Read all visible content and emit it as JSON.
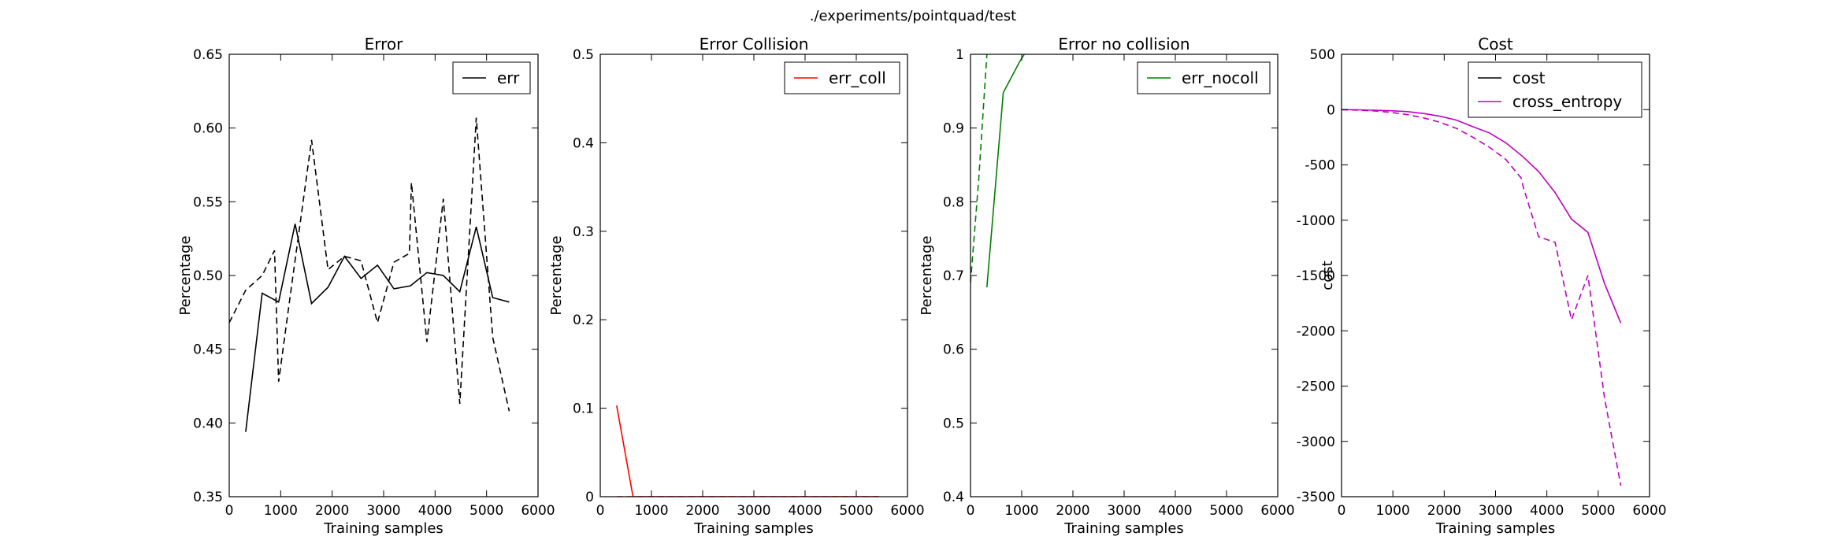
{
  "figure": {
    "suptitle": "./experiments/pointquad/test"
  },
  "chart_data": [
    {
      "type": "line",
      "title": "Error",
      "xlabel": "Training samples",
      "ylabel": "Percentage",
      "xlim": [
        0,
        6000
      ],
      "ylim": [
        0.35,
        0.65
      ],
      "xticks": [
        0,
        1000,
        2000,
        3000,
        4000,
        5000,
        6000
      ],
      "yticks": [
        0.35,
        0.4,
        0.45,
        0.5,
        0.55,
        0.6,
        0.65
      ],
      "legend": "top-right",
      "series": [
        {
          "name": "err",
          "color": "#000000",
          "dash": "solid",
          "x": [
            320,
            640,
            960,
            1280,
            1600,
            1920,
            2240,
            2560,
            2880,
            3200,
            3520,
            3840,
            4160,
            4480,
            4800,
            5120,
            5440
          ],
          "y": [
            0.394,
            0.488,
            0.482,
            0.535,
            0.481,
            0.492,
            0.513,
            0.498,
            0.507,
            0.491,
            0.493,
            0.502,
            0.5,
            0.489,
            0.533,
            0.485,
            0.482
          ]
        },
        {
          "name": "",
          "color": "#000000",
          "dash": "dashed",
          "x": [
            0,
            320,
            640,
            880,
            960,
            1200,
            1600,
            1920,
            2240,
            2560,
            2880,
            3200,
            3500,
            3540,
            3840,
            4160,
            4480,
            4800,
            5120,
            5440
          ],
          "y": [
            0.468,
            0.49,
            0.5,
            0.517,
            0.428,
            0.49,
            0.592,
            0.504,
            0.513,
            0.51,
            0.468,
            0.509,
            0.515,
            0.563,
            0.455,
            0.552,
            0.413,
            0.607,
            0.458,
            0.408
          ]
        }
      ]
    },
    {
      "type": "line",
      "title": "Error Collision",
      "xlabel": "Training samples",
      "ylabel": "Percentage",
      "xlim": [
        0,
        6000
      ],
      "ylim": [
        0.0,
        0.5
      ],
      "xticks": [
        0,
        1000,
        2000,
        3000,
        4000,
        5000,
        6000
      ],
      "yticks": [
        0.0,
        0.1,
        0.2,
        0.3,
        0.4,
        0.5
      ],
      "legend": "top-right",
      "series": [
        {
          "name": "err_coll",
          "color": "#ff0000",
          "dash": "solid",
          "x": [
            320,
            640,
            960,
            1280,
            1600,
            1920,
            2240,
            2560,
            2880,
            3200,
            3520,
            3840,
            4160,
            4480,
            4800,
            5120,
            5440
          ],
          "y": [
            0.103,
            0.0,
            0.0,
            0.0,
            0.0,
            0.0,
            0.0,
            0.0,
            0.0,
            0.0,
            0.0,
            0.0,
            0.0,
            0.0,
            0.0,
            0.0,
            0.0
          ]
        },
        {
          "name": "",
          "color": "#ff0000",
          "dash": "dashed",
          "x": [
            320,
            640,
            960,
            1280,
            1600,
            1920,
            2240,
            2560,
            2880,
            3200,
            3520,
            3840,
            4160,
            4480,
            4800,
            5120,
            5440
          ],
          "y": [
            0.0,
            0.0,
            0.0,
            0.0,
            0.0,
            0.0,
            0.0,
            0.0,
            0.0,
            0.0,
            0.0,
            0.0,
            0.0,
            0.0,
            0.0,
            0.0,
            0.0
          ]
        }
      ]
    },
    {
      "type": "line",
      "title": "Error no collision",
      "xlabel": "Training samples",
      "ylabel": "Percentage",
      "xlim": [
        0,
        6000
      ],
      "ylim": [
        0.4,
        1.0
      ],
      "xticks": [
        0,
        1000,
        2000,
        3000,
        4000,
        5000,
        6000
      ],
      "yticks": [
        0.4,
        0.5,
        0.6,
        0.7,
        0.8,
        0.9,
        1.0
      ],
      "legend": "top-right",
      "series": [
        {
          "name": "err_nocoll",
          "color": "#008000",
          "dash": "solid",
          "x": [
            320,
            640,
            960,
            1050
          ],
          "y": [
            0.684,
            0.948,
            0.99,
            1.0
          ]
        },
        {
          "name": "",
          "color": "#008000",
          "dash": "dashed",
          "x": [
            0,
            160,
            320
          ],
          "y": [
            0.69,
            0.83,
            1.0
          ]
        }
      ]
    },
    {
      "type": "line",
      "title": "Cost",
      "xlabel": "Training samples",
      "ylabel": "cost",
      "xlim": [
        0,
        6000
      ],
      "ylim": [
        -3500,
        500
      ],
      "xticks": [
        0,
        1000,
        2000,
        3000,
        4000,
        5000,
        6000
      ],
      "yticks": [
        -3500,
        -3000,
        -2500,
        -2000,
        -1500,
        -1000,
        -500,
        0,
        500
      ],
      "legend": "top-right",
      "series": [
        {
          "name": "cost",
          "color": "#000000",
          "dash": "solid",
          "legend_only": true,
          "x": [],
          "y": []
        },
        {
          "name": "cross_entropy",
          "color": "#bf00bf",
          "dash": "solid",
          "x": [
            0,
            320,
            640,
            960,
            1280,
            1600,
            1920,
            2240,
            2560,
            2880,
            3200,
            3520,
            3840,
            4160,
            4480,
            4800,
            5120,
            5440
          ],
          "y": [
            0,
            -2,
            -5,
            -10,
            -18,
            -35,
            -60,
            -95,
            -155,
            -210,
            -300,
            -420,
            -560,
            -750,
            -990,
            -1110,
            -1570,
            -1930
          ]
        },
        {
          "name": "",
          "color": "#bf00bf",
          "dash": "dashed",
          "x": [
            0,
            320,
            640,
            960,
            1280,
            1600,
            1920,
            2240,
            2560,
            2880,
            3200,
            3500,
            3540,
            3840,
            4160,
            4480,
            4800,
            5120,
            5440
          ],
          "y": [
            0,
            -5,
            -12,
            -25,
            -45,
            -75,
            -115,
            -170,
            -250,
            -340,
            -450,
            -620,
            -700,
            -1150,
            -1200,
            -1900,
            -1500,
            -2600,
            -3400
          ]
        }
      ]
    }
  ]
}
